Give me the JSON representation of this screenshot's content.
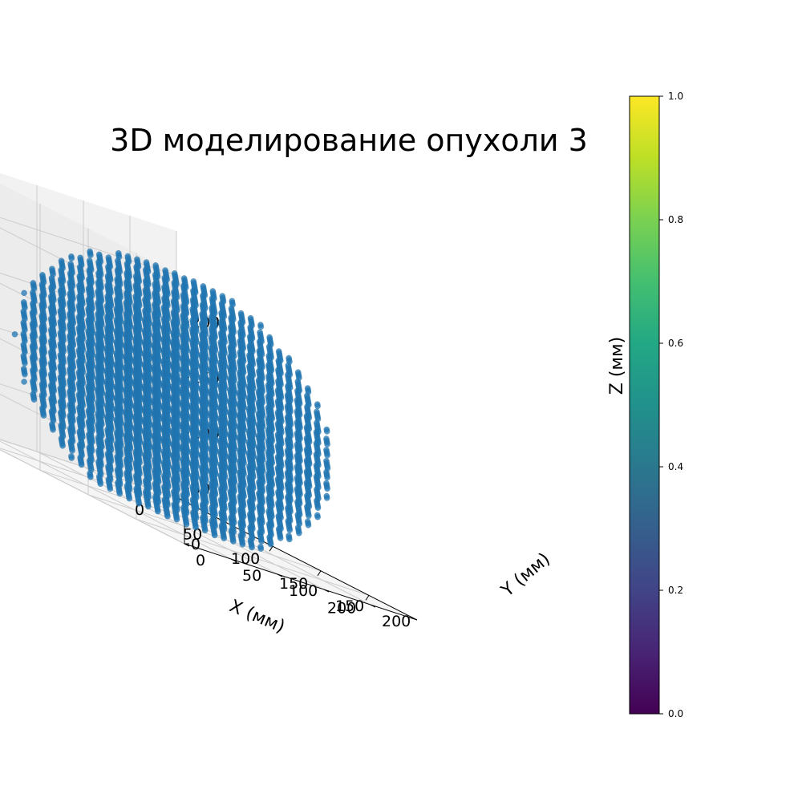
{
  "chart_data": {
    "type": "scatter",
    "projection": "3d",
    "title": "3D моделирование опухоли 3",
    "xlabel": "X (мм)",
    "ylabel": "Y (мм)",
    "zlabel": "Z (мм)",
    "xlim": [
      0,
      250
    ],
    "ylim": [
      0,
      250
    ],
    "zlim": [
      0,
      240
    ],
    "xticks": [
      0,
      50,
      100,
      150,
      200
    ],
    "yticks": [
      0,
      50,
      100,
      150,
      200
    ],
    "zticks": [
      0,
      50,
      100,
      150,
      200
    ],
    "grid": true,
    "marker_color": "#1f77b4",
    "shape": {
      "kind": "ellipsoid-voxel-cloud",
      "center": [
        115,
        128,
        105
      ],
      "radii": [
        118,
        120,
        120
      ],
      "grid_step": 10
    },
    "colorbar": {
      "colormap": "viridis",
      "range": [
        0.0,
        1.0
      ],
      "ticks": [
        "0.0",
        "0.2",
        "0.4",
        "0.6",
        "0.8",
        "1.0"
      ],
      "placement": "right"
    }
  }
}
